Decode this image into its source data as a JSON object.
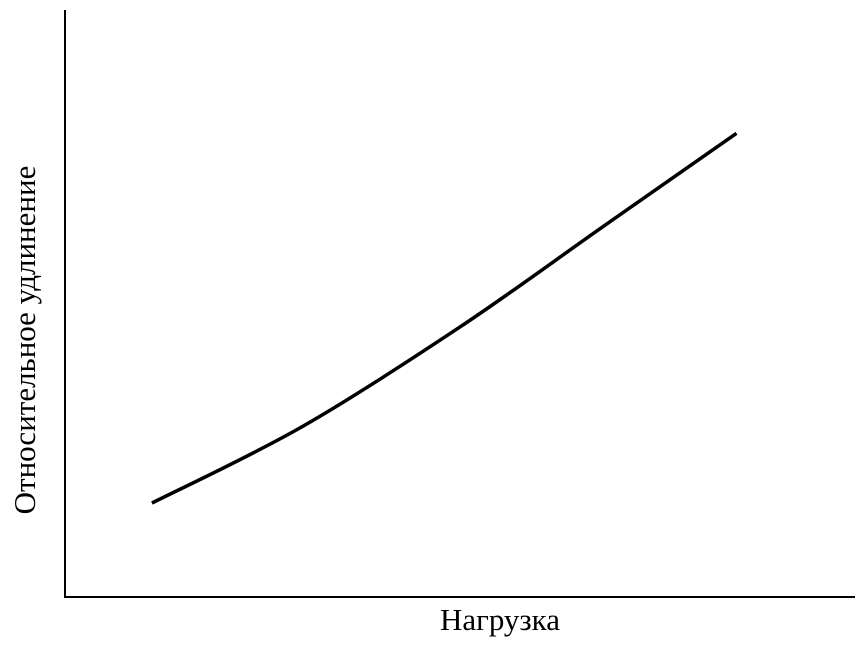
{
  "chart_data": {
    "type": "line",
    "xlabel": "Нагрузка",
    "ylabel": "Относительное удлинение",
    "x": [
      11,
      30,
      50,
      68,
      85
    ],
    "series": [
      {
        "color": "#000000",
        "values": [
          16,
          29,
          46,
          63,
          79
        ]
      }
    ],
    "xlim": [
      0,
      100
    ],
    "ylim": [
      0,
      100
    ]
  }
}
